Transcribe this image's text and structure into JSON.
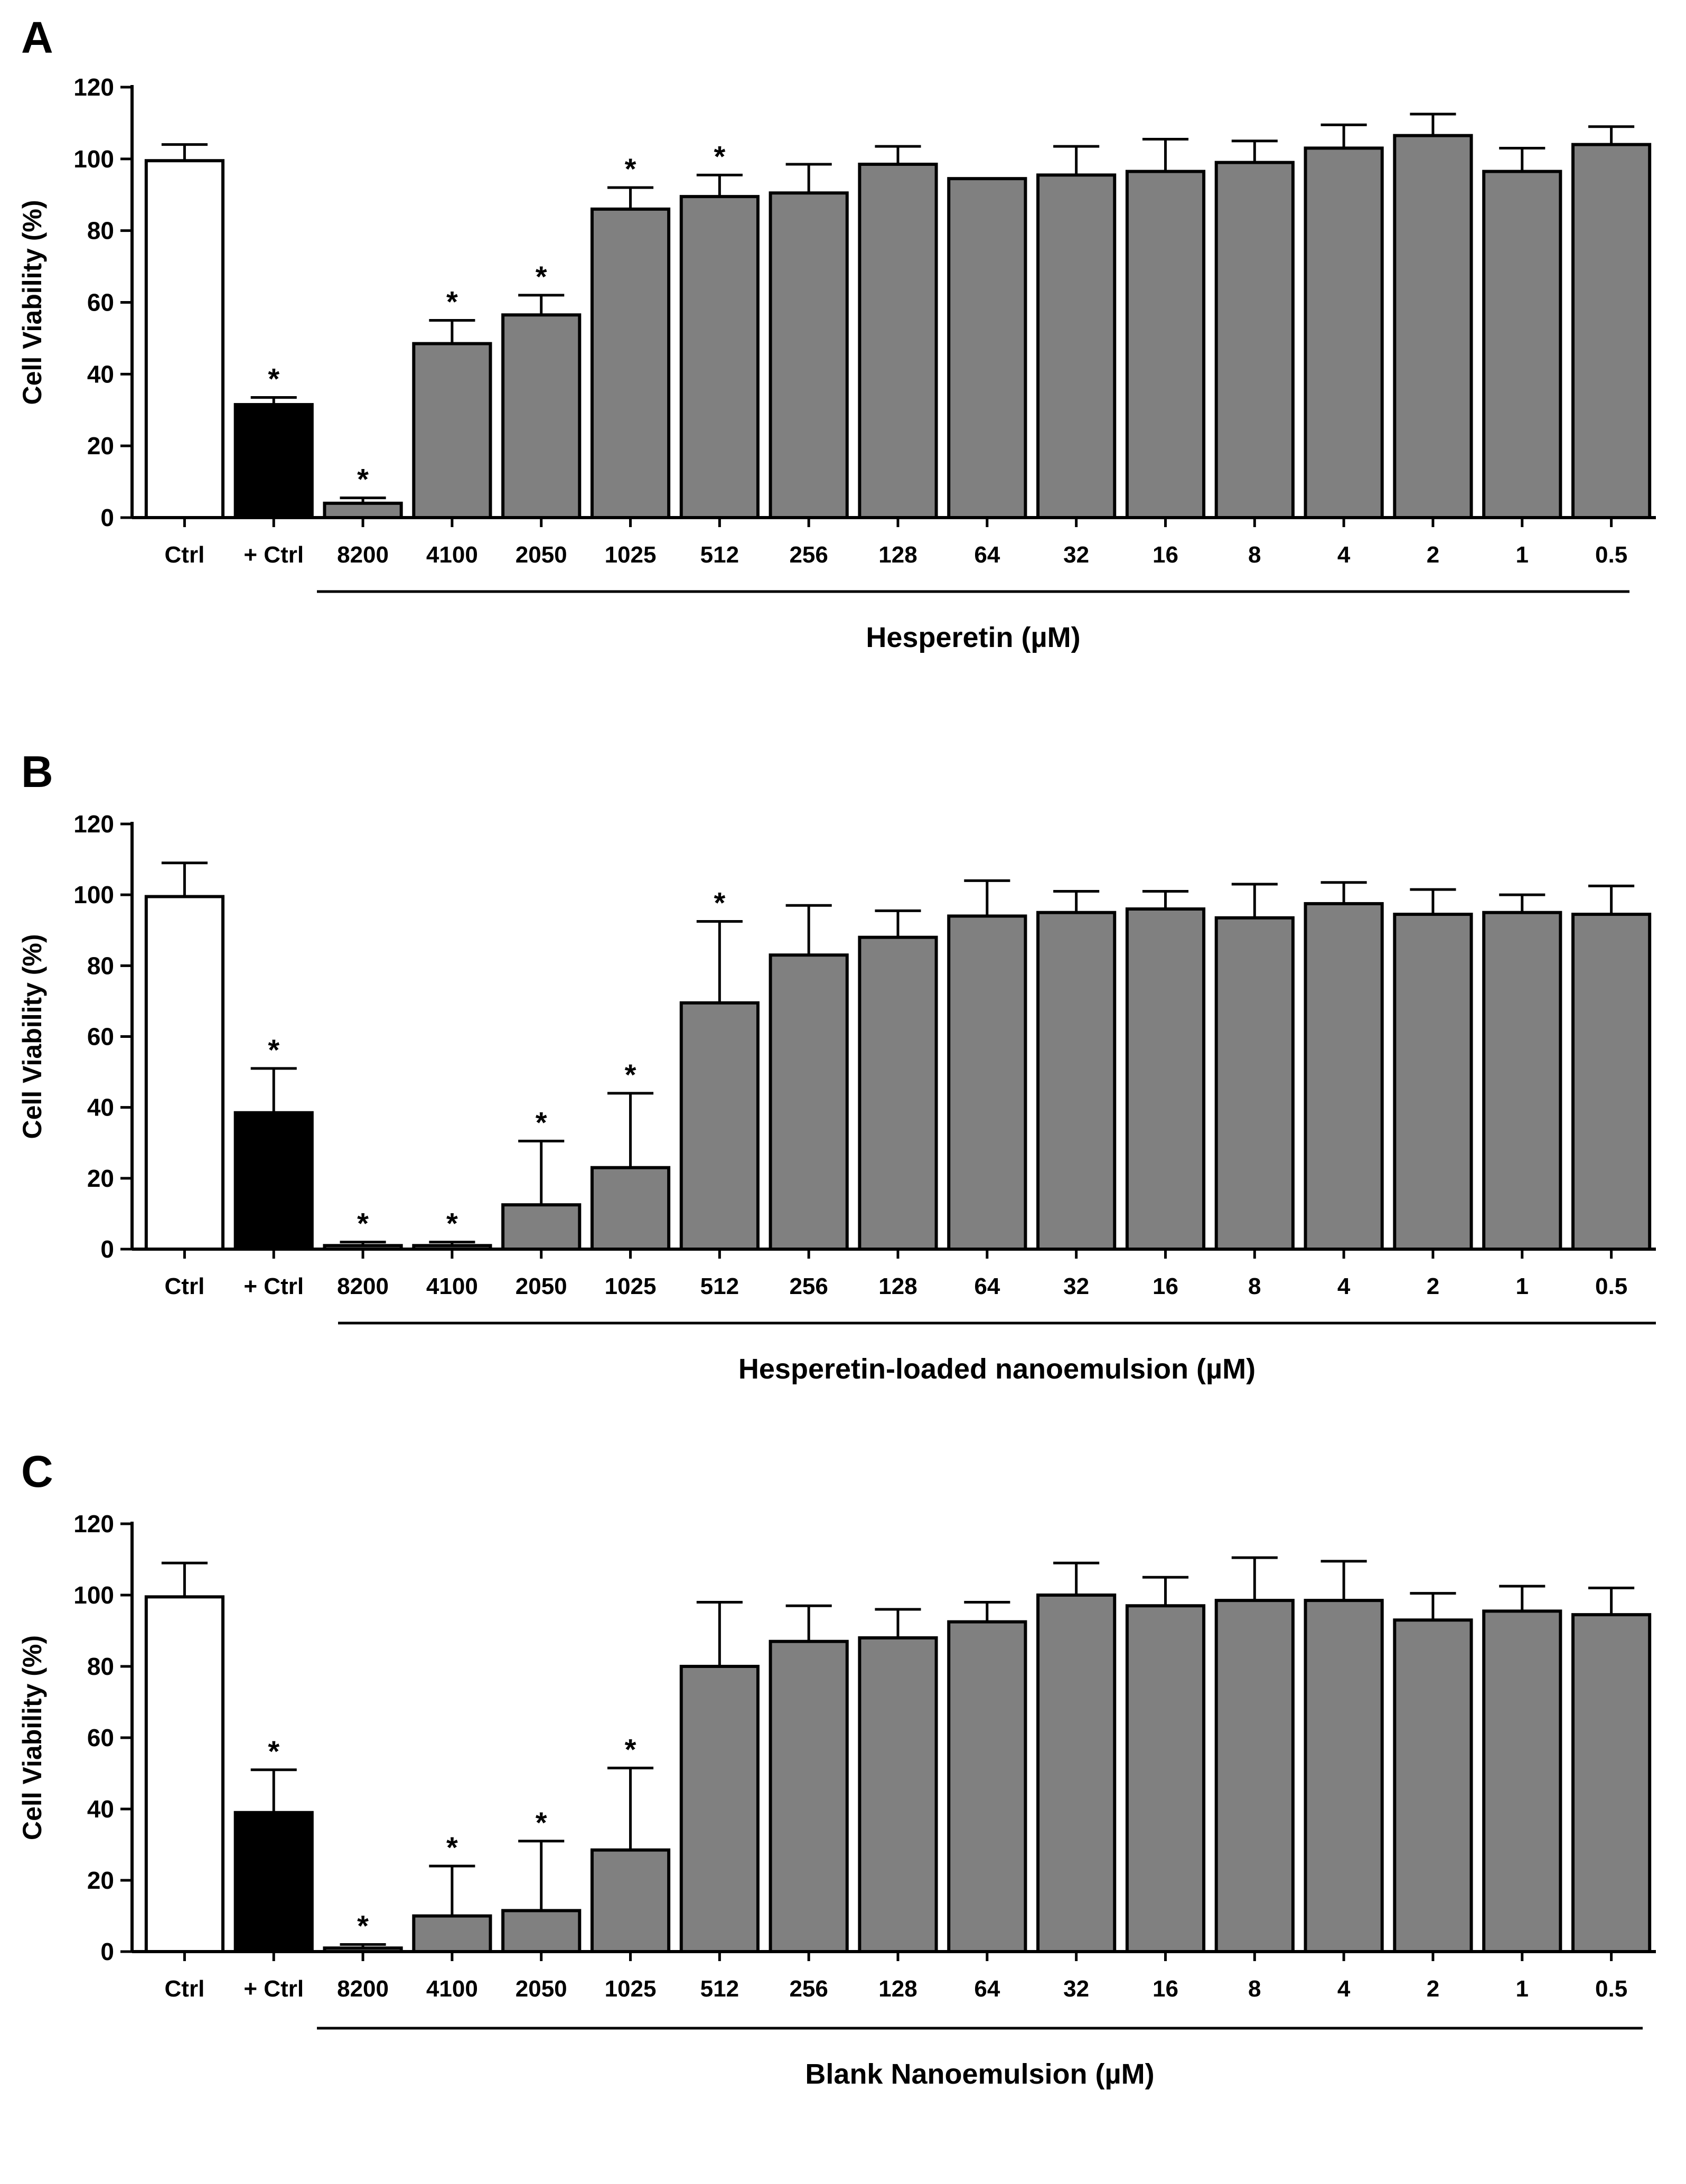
{
  "chart_data": [
    {
      "panel": "A",
      "type": "bar",
      "ylabel": "Cell Viability (%)",
      "ylim": [
        0,
        120
      ],
      "yticks": [
        0,
        20,
        40,
        60,
        80,
        100,
        120
      ],
      "group_label": "Hesperetin (µM)",
      "categories": [
        "Ctrl",
        "+ Ctrl",
        "8200",
        "4100",
        "2050",
        "1025",
        "512",
        "256",
        "128",
        "64",
        "32",
        "16",
        "8",
        "4",
        "2",
        "1",
        "0.5"
      ],
      "values": [
        99.5,
        31.5,
        4,
        48.5,
        56.5,
        86,
        89.5,
        90.5,
        98.5,
        94.5,
        95.5,
        96.5,
        99,
        103,
        106.5,
        96.5,
        104
      ],
      "errors": [
        4.5,
        2,
        1.5,
        6.5,
        5.5,
        6,
        6,
        8,
        5,
        0,
        8,
        9,
        6,
        6.5,
        6,
        6.5,
        5
      ],
      "significant": [
        false,
        true,
        true,
        true,
        true,
        true,
        true,
        false,
        false,
        false,
        false,
        false,
        false,
        false,
        false,
        false,
        false
      ],
      "bar_colors": [
        "#ffffff",
        "#000000",
        "#808080",
        "#808080",
        "#808080",
        "#808080",
        "#808080",
        "#808080",
        "#808080",
        "#808080",
        "#808080",
        "#808080",
        "#808080",
        "#808080",
        "#808080",
        "#808080",
        "#808080"
      ]
    },
    {
      "panel": "B",
      "type": "bar",
      "ylabel": "Cell Viability (%)",
      "ylim": [
        0,
        120
      ],
      "yticks": [
        0,
        20,
        40,
        60,
        80,
        100,
        120
      ],
      "group_label": "Hesperetin-loaded nanoemulsion (µM)",
      "categories": [
        "Ctrl",
        "+ Ctrl",
        "8200",
        "4100",
        "2050",
        "1025",
        "512",
        "256",
        "128",
        "64",
        "32",
        "16",
        "8",
        "4",
        "2",
        "1",
        "0.5"
      ],
      "values": [
        99.5,
        38.5,
        1,
        1,
        12.5,
        23,
        69.5,
        83,
        88,
        94,
        95,
        96,
        93.5,
        97.5,
        94.5,
        95,
        94.5
      ],
      "errors": [
        9.5,
        12.5,
        1,
        1,
        18,
        21,
        23,
        14,
        7.5,
        10,
        6,
        5,
        9.5,
        6,
        7,
        5,
        8
      ],
      "significant": [
        false,
        true,
        true,
        true,
        true,
        true,
        true,
        false,
        false,
        false,
        false,
        false,
        false,
        false,
        false,
        false,
        false
      ],
      "bar_colors": [
        "#ffffff",
        "#000000",
        "#808080",
        "#808080",
        "#808080",
        "#808080",
        "#808080",
        "#808080",
        "#808080",
        "#808080",
        "#808080",
        "#808080",
        "#808080",
        "#808080",
        "#808080",
        "#808080",
        "#808080"
      ]
    },
    {
      "panel": "C",
      "type": "bar",
      "ylabel": "Cell Viability (%)",
      "ylim": [
        0,
        120
      ],
      "yticks": [
        0,
        20,
        40,
        60,
        80,
        100,
        120
      ],
      "group_label": "Blank Nanoemulsion (µM)",
      "categories": [
        "Ctrl",
        "+ Ctrl",
        "8200",
        "4100",
        "2050",
        "1025",
        "512",
        "256",
        "128",
        "64",
        "32",
        "16",
        "8",
        "4",
        "2",
        "1",
        "0.5"
      ],
      "values": [
        99.5,
        39,
        1,
        10,
        11.5,
        28.5,
        80,
        87,
        88,
        92.5,
        100,
        97,
        98.5,
        98.5,
        93,
        95.5,
        94.5
      ],
      "errors": [
        9.5,
        12,
        1,
        14,
        19.5,
        23,
        18,
        10,
        8,
        5.5,
        9,
        8,
        12,
        11,
        7.5,
        7,
        7.5
      ],
      "significant": [
        false,
        true,
        true,
        true,
        true,
        true,
        false,
        false,
        false,
        false,
        false,
        false,
        false,
        false,
        false,
        false,
        false
      ],
      "bar_colors": [
        "#ffffff",
        "#000000",
        "#808080",
        "#808080",
        "#808080",
        "#808080",
        "#808080",
        "#808080",
        "#808080",
        "#808080",
        "#808080",
        "#808080",
        "#808080",
        "#808080",
        "#808080",
        "#808080",
        "#808080"
      ]
    }
  ],
  "significance_marker": "*"
}
